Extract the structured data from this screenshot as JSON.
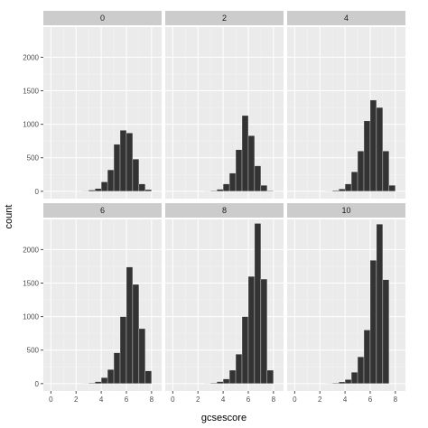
{
  "chart_data": {
    "type": "bar",
    "subtype": "faceted-histogram",
    "title": "",
    "xlabel": "gcsescore",
    "ylabel": "count",
    "xlim": [
      -0.6,
      8.8
    ],
    "ylim": [
      -110,
      2450
    ],
    "x_ticks": [
      0,
      2,
      4,
      6,
      8
    ],
    "y_ticks": [
      0,
      500,
      1000,
      1500,
      2000
    ],
    "grid": true,
    "legend": "none",
    "bin_width": 0.5,
    "bin_starts": [
      0,
      0.5,
      1,
      1.5,
      2,
      2.5,
      3,
      3.5,
      4,
      4.5,
      5,
      5.5,
      6,
      6.5,
      7,
      7.5
    ],
    "colors": {
      "bar": "#333333",
      "bar_edge": "#ffffff",
      "panel_bg": "#ebebeb",
      "grid_major": "#ffffff",
      "grid_minor": "#f5f5f5",
      "strip_bg": "#cccccc",
      "strip_text": "#1a1a1a",
      "tick_text": "#4d4d4d",
      "tick_line": "#4d4d4d"
    },
    "facets": [
      {
        "label": "0",
        "values": [
          0,
          0,
          0,
          0,
          1,
          4,
          18,
          40,
          140,
          320,
          700,
          910,
          870,
          480,
          110,
          25
        ]
      },
      {
        "label": "2",
        "values": [
          0,
          0,
          0,
          0,
          0,
          2,
          10,
          30,
          110,
          270,
          620,
          1130,
          830,
          380,
          90,
          10
        ]
      },
      {
        "label": "4",
        "values": [
          0,
          0,
          0,
          0,
          0,
          2,
          12,
          35,
          110,
          290,
          600,
          1050,
          1360,
          1250,
          600,
          90
        ]
      },
      {
        "label": "6",
        "values": [
          0,
          0,
          0,
          0,
          0,
          2,
          10,
          30,
          90,
          210,
          460,
          1000,
          1740,
          1480,
          820,
          190
        ]
      },
      {
        "label": "8",
        "values": [
          0,
          0,
          0,
          0,
          0,
          2,
          10,
          30,
          70,
          200,
          440,
          1000,
          1600,
          2390,
          1560,
          200
        ]
      },
      {
        "label": "10",
        "values": [
          0,
          0,
          0,
          0,
          0,
          2,
          10,
          25,
          60,
          170,
          400,
          800,
          1840,
          2380,
          1550,
          0
        ]
      }
    ]
  }
}
